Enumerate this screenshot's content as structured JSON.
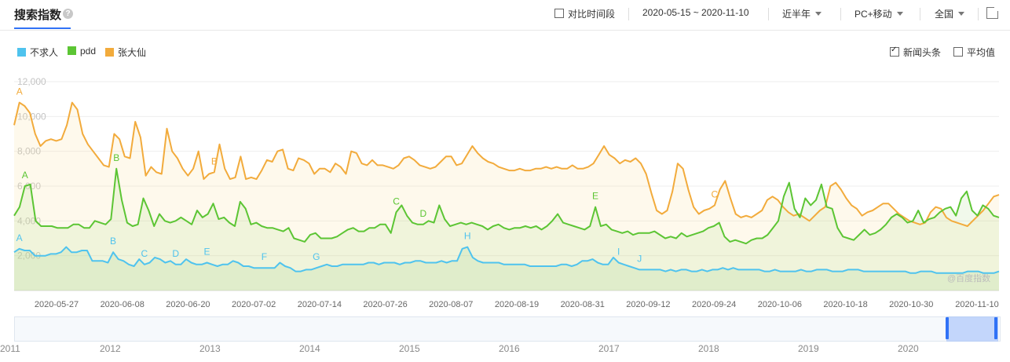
{
  "header": {
    "title": "搜索指数",
    "help_label": "?",
    "compare_label": "对比时间段",
    "date_range": "2020-05-15 ~ 2020-11-10",
    "period": "近半年",
    "device": "PC+移动",
    "region": "全国"
  },
  "options": {
    "news_label": "新闻头条",
    "news_checked": true,
    "average_label": "平均值",
    "average_checked": false
  },
  "watermark": "@百度指数",
  "colors": {
    "buqiuren": "#4fc3ee",
    "pdd": "#5cc534",
    "zhangdaxian": "#f2ab3c",
    "accent": "#3072f6"
  },
  "navigator": {
    "years": [
      "2011",
      "2012",
      "2013",
      "2014",
      "2015",
      "2016",
      "2017",
      "2018",
      "2019",
      "2020"
    ]
  },
  "chart_data": {
    "type": "line",
    "x_start": "2020-05-15",
    "x_end": "2020-11-10",
    "x_tick_labels": [
      "2020-05-27",
      "2020-06-08",
      "2020-06-20",
      "2020-07-02",
      "2020-07-14",
      "2020-07-26",
      "2020-08-07",
      "2020-08-19",
      "2020-08-31",
      "2020-09-12",
      "2020-09-24",
      "2020-10-06",
      "2020-10-18",
      "2020-10-30",
      "2020-11-10"
    ],
    "y_tick_labels": [
      "2,000",
      "4,000",
      "6,000",
      "8,000",
      "10,000",
      "12,000"
    ],
    "ylim": [
      0,
      12000
    ],
    "grid": true,
    "legend_position": "top-left",
    "series": [
      {
        "name": "不求人",
        "values": [
          2200,
          2400,
          2300,
          2300,
          2000,
          2000,
          2000,
          2100,
          2100,
          2200,
          2500,
          2200,
          2200,
          2300,
          2300,
          1700,
          1700,
          1700,
          1600,
          2200,
          1800,
          1700,
          1500,
          1400,
          1800,
          1500,
          1600,
          1900,
          1800,
          1600,
          1700,
          1500,
          1500,
          1800,
          1600,
          1500,
          1500,
          1600,
          1500,
          1400,
          1500,
          1500,
          1700,
          1600,
          1400,
          1400,
          1300,
          1300,
          1300,
          1300,
          1300,
          1600,
          1400,
          1300,
          1100,
          1100,
          1200,
          1200,
          1300,
          1400,
          1500,
          1400,
          1400,
          1500,
          1500,
          1500,
          1500,
          1500,
          1600,
          1600,
          1500,
          1600,
          1600,
          1600,
          1500,
          1600,
          1600,
          1700,
          1700,
          1600,
          1600,
          1600,
          1700,
          1600,
          1700,
          1700,
          2400,
          2500,
          1900,
          1700,
          1600,
          1600,
          1600,
          1600,
          1500,
          1500,
          1500,
          1500,
          1500,
          1400,
          1400,
          1400,
          1400,
          1400,
          1400,
          1500,
          1500,
          1400,
          1500,
          1700,
          1700,
          1800,
          1600,
          1500,
          1500,
          1900,
          1600,
          1500,
          1400,
          1300,
          1200,
          1200,
          1200,
          1200,
          1200,
          1100,
          1200,
          1100,
          1200,
          1200,
          1100,
          1100,
          1200,
          1100,
          1200,
          1200,
          1300,
          1200,
          1300,
          1200,
          1200,
          1200,
          1200,
          1200,
          1100,
          1100,
          1200,
          1100,
          1100,
          1100,
          1100,
          1200,
          1100,
          1100,
          1200,
          1200,
          1200,
          1100,
          1100,
          1100,
          1200,
          1200,
          1200,
          1100,
          1100,
          1100,
          1100,
          1100,
          1100,
          1100,
          1100,
          1100,
          1000,
          1000,
          1100,
          1100,
          1100,
          1000,
          1000,
          1000,
          1000,
          1000,
          1000,
          1100,
          1100,
          1100,
          1000,
          1000,
          1000,
          1100
        ],
        "annotations": [
          {
            "label": "A",
            "index": 1
          },
          {
            "label": "B",
            "index": 19
          },
          {
            "label": "C",
            "index": 25
          },
          {
            "label": "D",
            "index": 31
          },
          {
            "label": "E",
            "index": 37
          },
          {
            "label": "F",
            "index": 48
          },
          {
            "label": "G",
            "index": 58
          },
          {
            "label": "H",
            "index": 87
          },
          {
            "label": "I",
            "index": 116
          },
          {
            "label": "J",
            "index": 120
          }
        ]
      },
      {
        "name": "pdd",
        "values": [
          4300,
          4800,
          6000,
          6100,
          4000,
          3700,
          3700,
          3700,
          3600,
          3600,
          3600,
          3800,
          3800,
          3600,
          3600,
          4000,
          3900,
          3800,
          4100,
          7000,
          5200,
          3900,
          3700,
          3800,
          5300,
          4600,
          3700,
          4400,
          4000,
          3900,
          4000,
          4200,
          4000,
          3800,
          4600,
          4200,
          4400,
          5000,
          4100,
          4200,
          3900,
          3700,
          5100,
          4700,
          3800,
          3900,
          3700,
          3600,
          3600,
          3500,
          3400,
          3600,
          3000,
          2900,
          2800,
          3200,
          3300,
          3000,
          3000,
          3000,
          3100,
          3300,
          3500,
          3600,
          3400,
          3400,
          3600,
          3600,
          3800,
          3800,
          3300,
          4500,
          4900,
          4300,
          3900,
          3800,
          3800,
          4000,
          3900,
          4900,
          4100,
          3700,
          3800,
          3900,
          3800,
          3900,
          3800,
          3700,
          3500,
          3700,
          3800,
          3600,
          3500,
          3600,
          3600,
          3700,
          3600,
          3700,
          3500,
          3700,
          4000,
          4400,
          3900,
          3800,
          3700,
          3600,
          3500,
          3700,
          4800,
          3700,
          3800,
          3500,
          3400,
          3300,
          3400,
          3200,
          3300,
          3300,
          3300,
          3400,
          3200,
          3000,
          3100,
          3000,
          3300,
          3100,
          3200,
          3300,
          3400,
          3600,
          3700,
          3900,
          3100,
          2800,
          2900,
          2800,
          2700,
          2900,
          3000,
          3000,
          3200,
          3600,
          4000,
          5400,
          6200,
          4700,
          4200,
          5300,
          4900,
          5200,
          6100,
          4800,
          4700,
          3600,
          3100,
          3000,
          2900,
          3200,
          3500,
          3200,
          3300,
          3500,
          3800,
          4200,
          4400,
          4200,
          3900,
          4000,
          4600,
          3900,
          4100,
          4200,
          4500,
          4700,
          4800,
          4300,
          5300,
          5700,
          4600,
          4300,
          4900,
          4700,
          4300,
          4200
        ],
        "annotations": [
          {
            "label": "A",
            "index": 2
          },
          {
            "label": "B",
            "index": 19
          },
          {
            "label": "C",
            "index": 71
          },
          {
            "label": "D",
            "index": 76
          },
          {
            "label": "E",
            "index": 108
          }
        ]
      },
      {
        "name": "张大仙",
        "values": [
          9500,
          10800,
          10600,
          10200,
          9000,
          8300,
          8600,
          8700,
          8600,
          8700,
          9500,
          10800,
          10400,
          9000,
          8400,
          8000,
          7600,
          7200,
          7100,
          9000,
          8700,
          7700,
          7600,
          9700,
          8800,
          6600,
          7100,
          6800,
          6700,
          9300,
          8000,
          7600,
          7000,
          6600,
          7000,
          8000,
          6400,
          6700,
          6800,
          8400,
          7000,
          6400,
          6500,
          7700,
          6400,
          6500,
          6400,
          6900,
          7500,
          7400,
          8000,
          8100,
          7000,
          6900,
          7600,
          7500,
          7300,
          6700,
          7000,
          7000,
          6800,
          7300,
          7100,
          6700,
          8000,
          7900,
          7300,
          7200,
          7500,
          7200,
          7200,
          7100,
          7000,
          7200,
          7600,
          7700,
          7500,
          7200,
          7100,
          7000,
          7100,
          7400,
          7700,
          7700,
          7200,
          7300,
          7800,
          8300,
          7900,
          7600,
          7400,
          7300,
          7100,
          7000,
          6900,
          6900,
          7000,
          6900,
          6900,
          7000,
          7000,
          7100,
          7000,
          7100,
          7000,
          7000,
          7200,
          7000,
          7000,
          7100,
          7300,
          7800,
          8300,
          7800,
          7600,
          7300,
          7500,
          7400,
          7600,
          7300,
          6700,
          5600,
          4600,
          4400,
          4600,
          5700,
          7300,
          7000,
          5800,
          4800,
          4400,
          4600,
          4700,
          4900,
          5800,
          6300,
          5300,
          4400,
          4200,
          4300,
          4200,
          4400,
          4600,
          5200,
          5400,
          5200,
          4800,
          4500,
          4300,
          4400,
          4200,
          4000,
          4300,
          4600,
          4800,
          6000,
          6200,
          5800,
          5300,
          4900,
          4700,
          4300,
          4500,
          4600,
          4800,
          5000,
          5000,
          4700,
          4400,
          4200,
          4000,
          3900,
          3800,
          3900,
          4500,
          4800,
          4700,
          4200,
          4000,
          3900,
          3800,
          3700,
          4000,
          4300,
          4600,
          5000,
          5400,
          5500
        ],
        "annotations": [
          {
            "label": "A",
            "index": 1
          },
          {
            "label": "B",
            "index": 38
          },
          {
            "label": "C",
            "index": 133
          }
        ]
      }
    ]
  }
}
